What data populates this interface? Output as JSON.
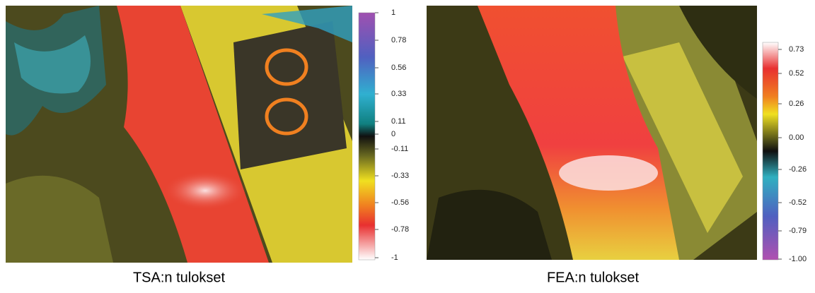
{
  "panels": [
    {
      "caption": "TSA:n tulokset",
      "colorbar_ticks": [
        "1",
        "0.78",
        "0.56",
        "0.33",
        "0.11",
        "0",
        "-0.11",
        "-0.33",
        "-0.56",
        "-0.78",
        "-1"
      ]
    },
    {
      "caption": "FEA:n tulokset",
      "colorbar_ticks": [
        "0.73",
        "0.52",
        "0.26",
        "0.00",
        "-0.26",
        "-0.52",
        "-0.79",
        "-1.00"
      ]
    }
  ]
}
